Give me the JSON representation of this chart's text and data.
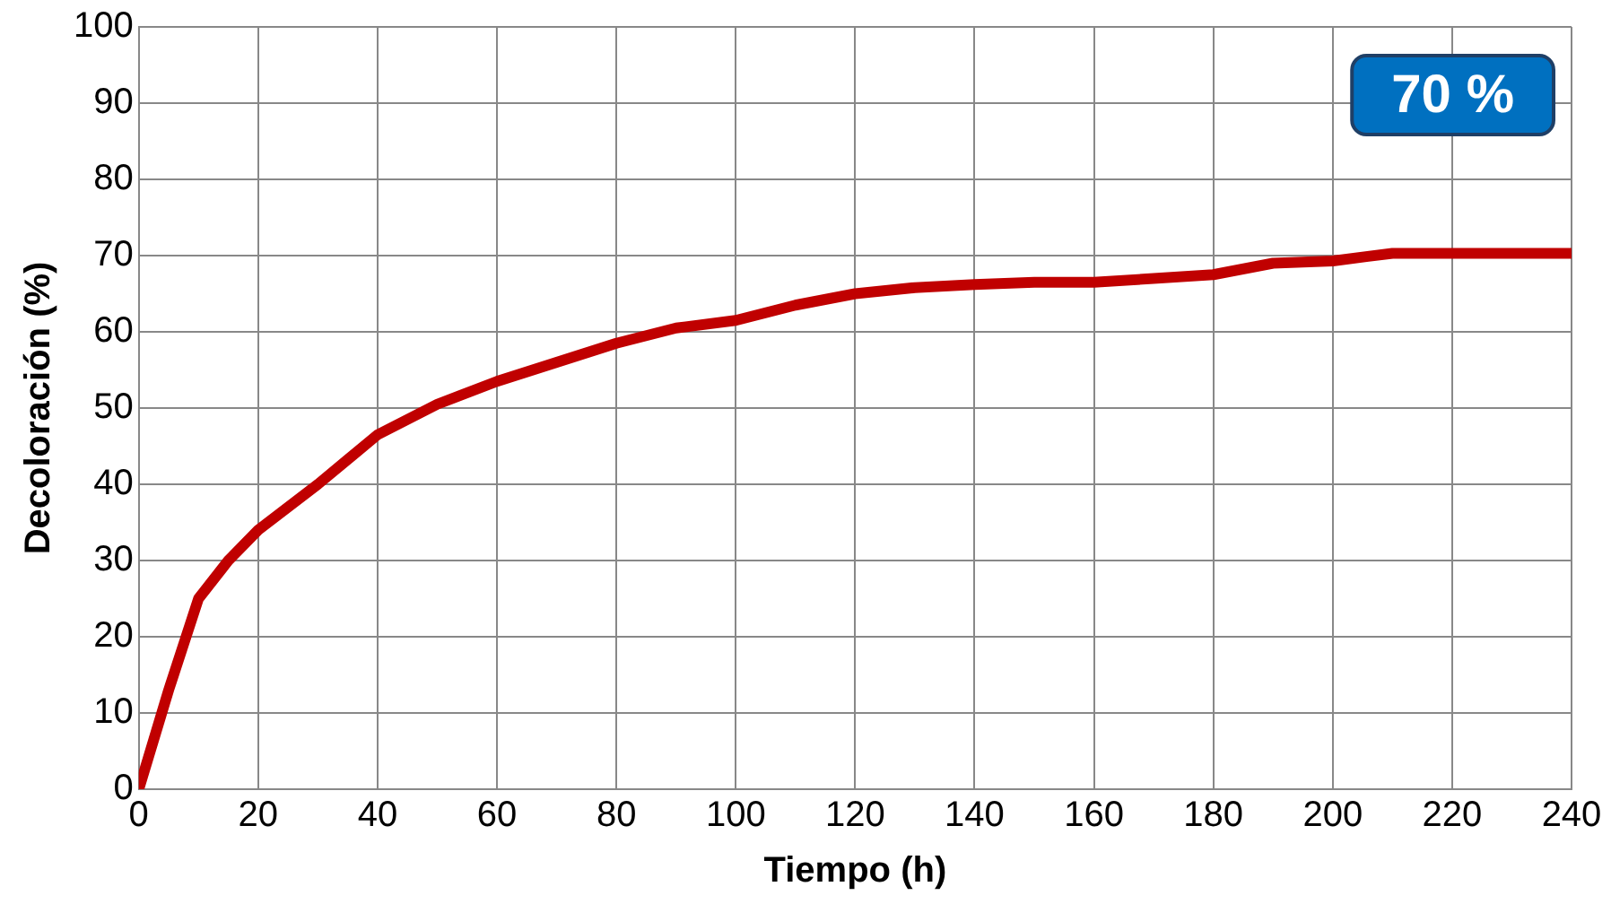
{
  "chart_data": {
    "type": "line",
    "xlabel": "Tiempo (h)",
    "ylabel": "Decoloración (%)",
    "x": [
      0,
      5,
      10,
      15,
      20,
      30,
      40,
      50,
      60,
      70,
      80,
      90,
      100,
      110,
      120,
      130,
      140,
      150,
      160,
      170,
      180,
      190,
      200,
      210,
      220,
      240
    ],
    "series": [
      {
        "color": "#c00000",
        "values": [
          0,
          13,
          25,
          30,
          34,
          40,
          46.5,
          50.5,
          53.5,
          56,
          58.5,
          60.5,
          61.5,
          63.5,
          65,
          65.8,
          66.2,
          66.5,
          66.5,
          67,
          67.5,
          69,
          69.3,
          70.3,
          70.3,
          70.3
        ]
      }
    ],
    "xlim": [
      0,
      240
    ],
    "xticks": [
      0,
      20,
      40,
      60,
      80,
      100,
      120,
      140,
      160,
      180,
      200,
      220,
      240
    ],
    "ylim": [
      0,
      100
    ],
    "yticks": [
      0,
      10,
      20,
      30,
      40,
      50,
      60,
      70,
      80,
      90,
      100
    ],
    "grid": true,
    "legend": false,
    "marker": "none",
    "line_style": "solid",
    "annotations": [
      "70 %"
    ]
  }
}
